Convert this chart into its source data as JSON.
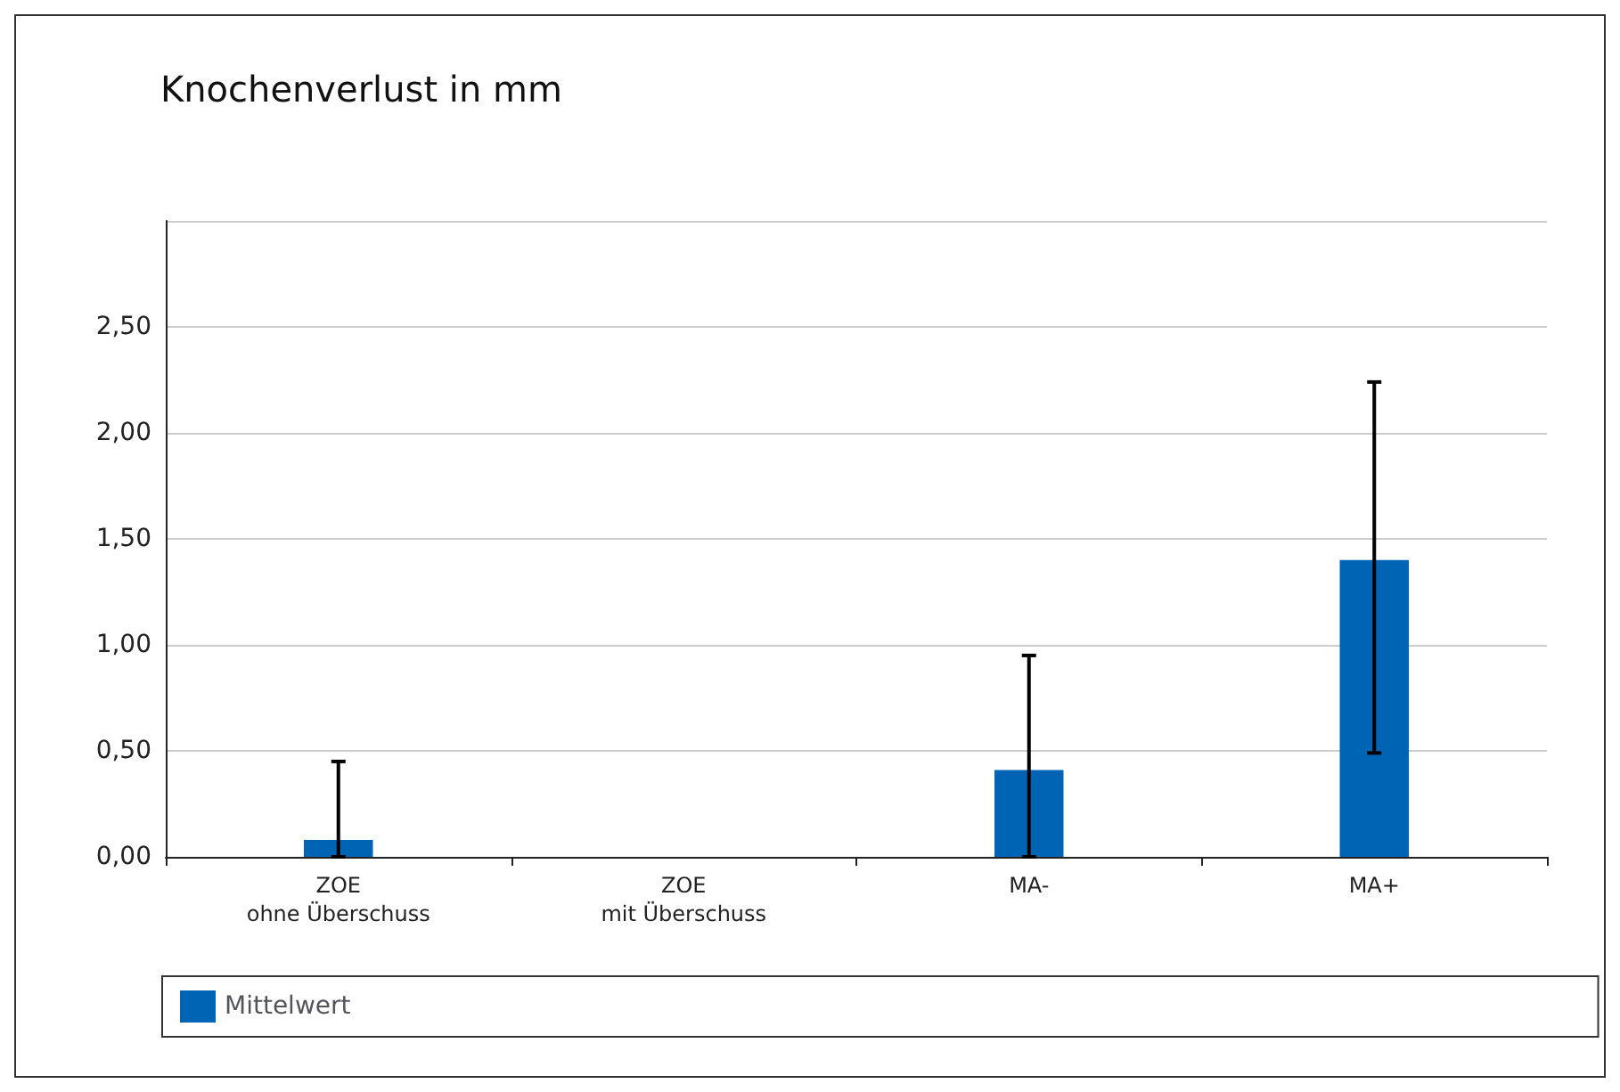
{
  "chart_data": {
    "type": "bar",
    "title": "Knochenverlust in mm",
    "categories": [
      "ZOE\nohne Überschuss",
      "ZOE\nmit Überschuss",
      "MA-",
      "MA+"
    ],
    "series": [
      {
        "name": "Mittelwert",
        "color": "#0064b4",
        "values": [
          0.08,
          0,
          0.41,
          1.4
        ],
        "errors": [
          [
            0,
            0.45
          ],
          null,
          [
            0,
            0.95
          ],
          [
            0.49,
            2.24
          ]
        ]
      }
    ],
    "ylim": [
      0,
      3
    ],
    "yticks": [
      {
        "value": 0,
        "label": "0,00"
      },
      {
        "value": 0.5,
        "label": "0,50"
      },
      {
        "value": 1,
        "label": "1,00"
      },
      {
        "value": 1.5,
        "label": "1,50"
      },
      {
        "value": 2,
        "label": "2,00"
      },
      {
        "value": 2.5,
        "label": "2,50"
      },
      {
        "value": 3,
        "label": null
      }
    ],
    "grid": "y",
    "legend": "bottom"
  }
}
